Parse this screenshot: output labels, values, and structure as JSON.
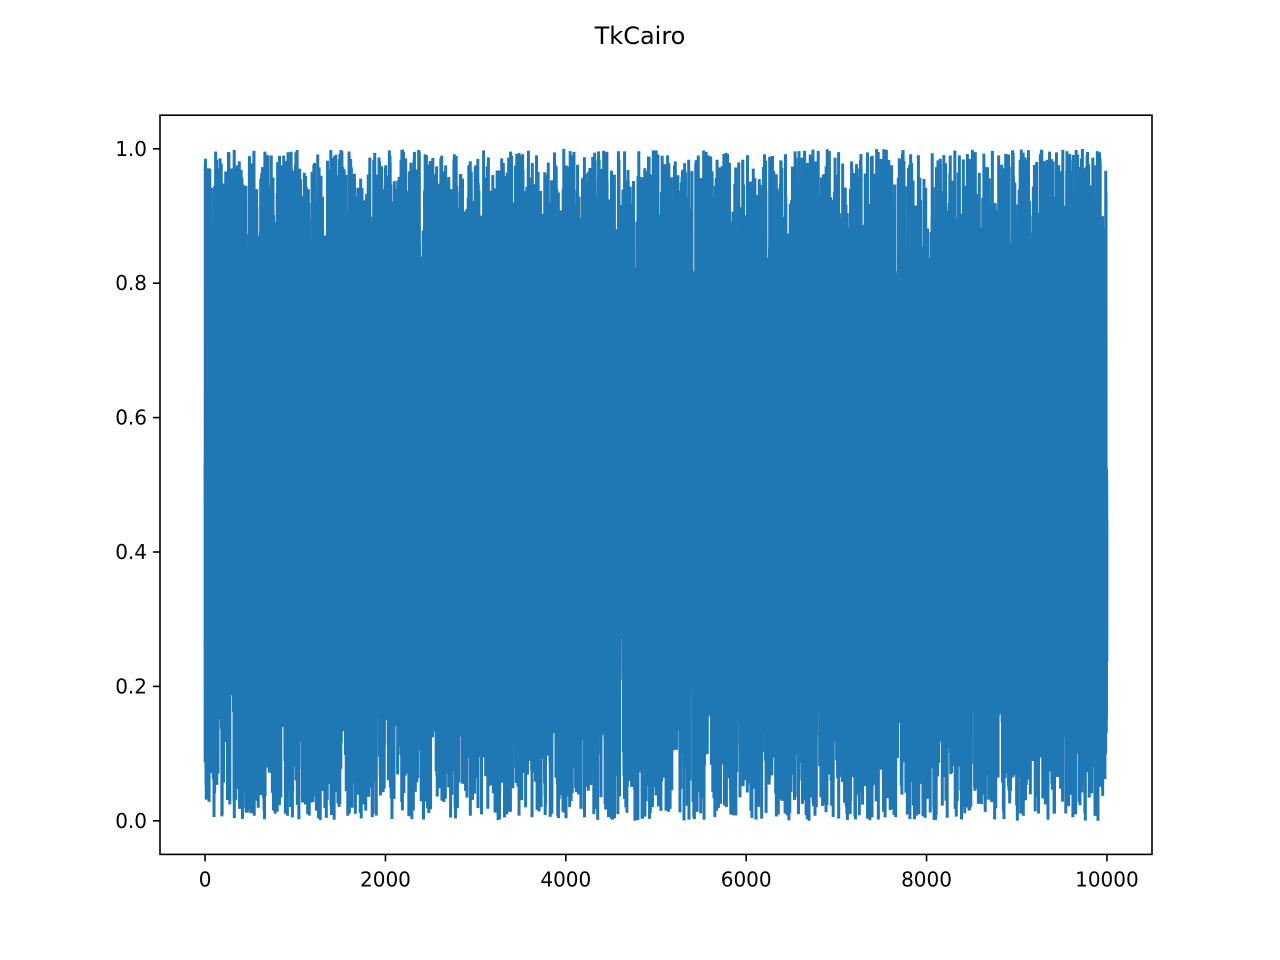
{
  "window": {
    "title": "TkCairo"
  },
  "chart_data": {
    "type": "line",
    "title": "TkCairo",
    "xlabel": "",
    "ylabel": "",
    "xlim": [
      -500,
      10500
    ],
    "ylim": [
      -0.05,
      1.05
    ],
    "x_ticks": [
      0,
      2000,
      4000,
      6000,
      8000,
      10000
    ],
    "x_tick_labels": [
      "0",
      "2000",
      "4000",
      "6000",
      "8000",
      "10000"
    ],
    "y_ticks": [
      0.0,
      0.2,
      0.4,
      0.6,
      0.8,
      1.0
    ],
    "y_tick_labels": [
      "0.0",
      "0.2",
      "0.4",
      "0.6",
      "0.8",
      "1.0"
    ],
    "grid": false,
    "legend": "none",
    "series": [
      {
        "color": "#1f77b4",
        "x_start": 0,
        "x_end": 10000,
        "point_count": 10000,
        "y_min": 0.0,
        "y_max": 1.0,
        "distribution": "uniform random in [0, 1]"
      }
    ]
  }
}
